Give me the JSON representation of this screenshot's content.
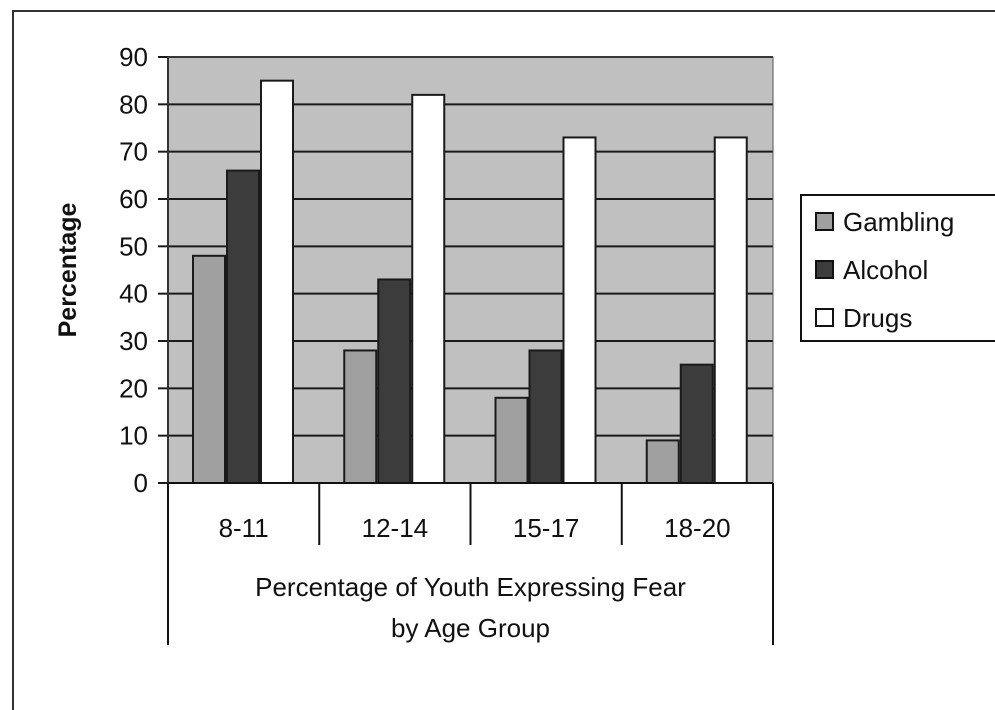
{
  "chart_data": {
    "type": "bar",
    "categories": [
      "8-11",
      "12-14",
      "15-17",
      "18-20"
    ],
    "series": [
      {
        "name": "Gambling",
        "values": [
          48,
          28,
          18,
          9
        ],
        "color": "#a0a0a0"
      },
      {
        "name": "Alcohol",
        "values": [
          66,
          43,
          28,
          25
        ],
        "color": "#3c3c3c"
      },
      {
        "name": "Drugs",
        "values": [
          85,
          82,
          73,
          73
        ],
        "color": "#ffffff"
      }
    ],
    "ylabel": "Percentage",
    "xlabel_lines": [
      "Percentage of Youth Expressing Fear",
      "by Age Group"
    ],
    "ylim": [
      0,
      90
    ],
    "yticks": [
      0,
      10,
      20,
      30,
      40,
      50,
      60,
      70,
      80,
      90
    ],
    "grid": true,
    "legend_position": "right",
    "plot_background": "#c0c0c0"
  }
}
